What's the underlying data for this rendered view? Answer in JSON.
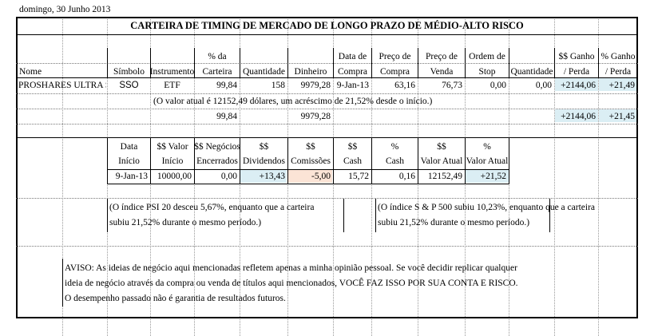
{
  "date_label": "domingo, 30 Junho 2013",
  "title": "CARTEIRA DE TIMING DE MERCADO DE LONGO PRAZO DE MÉDIO-ALTO RISCO",
  "headers": [
    {
      "key": "nome",
      "line1": "",
      "line2": "Nome"
    },
    {
      "key": "simbolo",
      "line1": "",
      "line2": "Símbolo"
    },
    {
      "key": "instrumento",
      "line1": "",
      "line2": "Instrumento"
    },
    {
      "key": "pct_carteira",
      "line1": "% da",
      "line2": "Carteira"
    },
    {
      "key": "quantidade",
      "line1": "",
      "line2": "Quantidade"
    },
    {
      "key": "dinheiro",
      "line1": "",
      "line2": "Dinheiro"
    },
    {
      "key": "data_compra",
      "line1": "Data de",
      "line2": "Compra"
    },
    {
      "key": "preco_compra",
      "line1": "Preço de",
      "line2": "Compra"
    },
    {
      "key": "preco_venda",
      "line1": "Preço de",
      "line2": "Venda"
    },
    {
      "key": "ordem_stop",
      "line1": "Ordem de",
      "line2": "Stop"
    },
    {
      "key": "quantidade2",
      "line1": "",
      "line2": "Quantidade"
    },
    {
      "key": "ganho_usd",
      "line1": "$$ Ganho",
      "line2": "/ Perda"
    },
    {
      "key": "ganho_pct",
      "line1": "% Ganho",
      "line2": "/ Perda"
    }
  ],
  "position_row": {
    "nome": "PROSHARES ULTRA S",
    "simbolo": "SSO",
    "instrumento": "ETF",
    "pct_carteira": "99,84",
    "quantidade": "158",
    "dinheiro": "9979,28",
    "data_compra": "9-Jan-13",
    "preco_compra": "63,16",
    "preco_venda": "76,73",
    "ordem_stop": "0,00",
    "quantidade2": "0,00",
    "ganho_usd": "+2144,06",
    "ganho_pct": "+21,49"
  },
  "note_value": "(O valor atual é 12152,49 dólares, um acréscimo de 21,52% desde o início.)",
  "totals_row": {
    "pct_carteira": "99,84",
    "dinheiro": "9979,28",
    "ganho_usd": "+2144,06",
    "ganho_pct": "+21,45"
  },
  "summary_headers": [
    {
      "line1": "Data",
      "line2": "Início"
    },
    {
      "line1": "$$ Valor",
      "line2": "Início"
    },
    {
      "line1": "$$ Negócios",
      "line2": "Encerrados"
    },
    {
      "line1": "$$",
      "line2": "Dividendos"
    },
    {
      "line1": "$$",
      "line2": "Comissões"
    },
    {
      "line1": "$$",
      "line2": "Cash"
    },
    {
      "line1": "%",
      "line2": "Cash"
    },
    {
      "line1": "$$",
      "line2": "Valor Atual"
    },
    {
      "line1": "%",
      "line2": "Valor Atual"
    }
  ],
  "summary_row": [
    "9-Jan-13",
    "10000,00",
    "0,00",
    "+13,43",
    "-5,00",
    "15,72",
    "0,16",
    "12152,49",
    "+21,52"
  ],
  "psi_note": {
    "line1": "(O índice PSI 20 desceu 5,67%, enquanto que a carteira",
    "line2": "subiu 21,52% durante o mesmo período.)"
  },
  "sp_note": {
    "line1": "(O índice S & P 500 subiu 10,23%, enquanto que a carteira",
    "line2": "subiu 21,52% durante o mesmo período.)"
  },
  "disclaimer": {
    "line1": "AVISO: As ideias de negócio aqui mencionadas refletem apenas a minha opinião pessoal. Se você decidir replicar qualquer",
    "line2": "ideia de negócio através da compra ou venda de títulos aqui mencionados, VOCÊ FAZ ISSO POR SUA CONTA E RISCO.",
    "line3": "O desempenho passado não é garantia de resultados futuros."
  },
  "colors": {
    "highlight_cyan": "#dbeef4",
    "highlight_peach": "#fbe4d6"
  }
}
